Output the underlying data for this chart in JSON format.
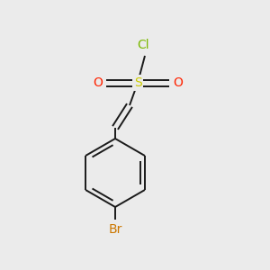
{
  "background_color": "#ebebeb",
  "bond_color": "#1a1a1a",
  "bond_width": 1.4,
  "cl_color": "#7ab800",
  "o_color": "#ff2200",
  "s_color": "#cccc00",
  "br_color": "#cc7700",
  "font_size": 10,
  "cl_label": "Cl",
  "s_label": "S",
  "o_label": "O",
  "br_label": "Br",
  "figsize": [
    3.0,
    3.0
  ],
  "dpi": 100
}
